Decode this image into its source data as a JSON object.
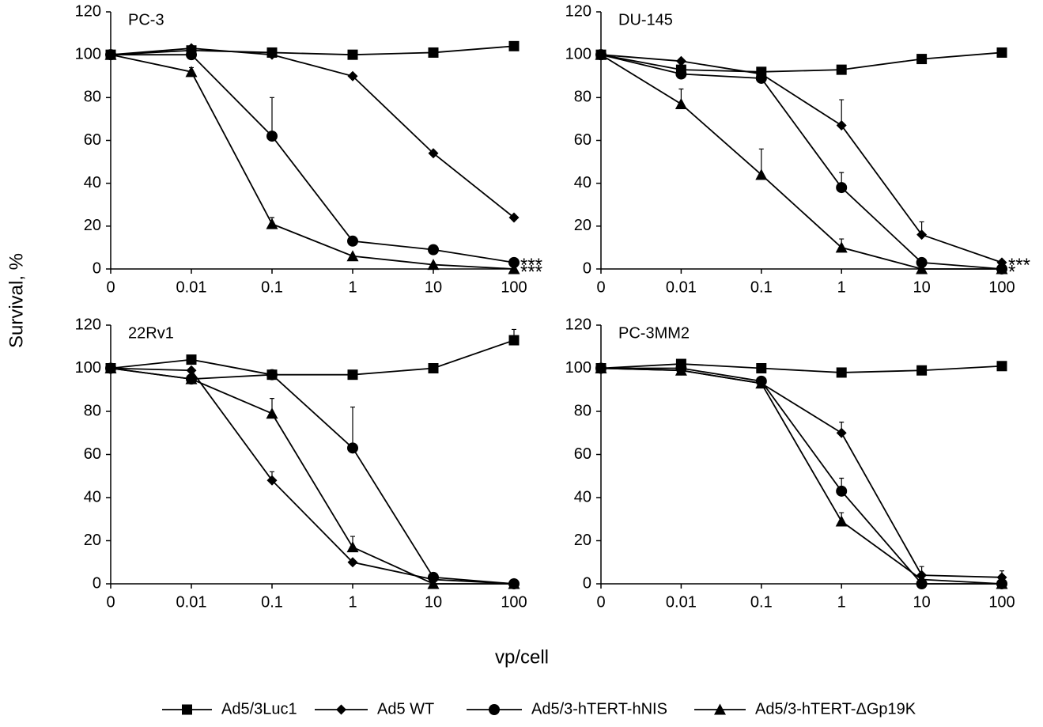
{
  "y_label": "Survival, %",
  "x_label": "vp/cell",
  "chart_data": [
    {
      "type": "line",
      "title": "PC-3",
      "categories": [
        "0",
        "0.01",
        "0.1",
        "1",
        "10",
        "100"
      ],
      "ylim": [
        0,
        120
      ],
      "yticks": [
        0,
        20,
        40,
        60,
        80,
        100,
        120
      ],
      "series": [
        {
          "name": "Ad5/3Luc1",
          "color": "#000000",
          "marker": "square",
          "values": [
            100,
            102,
            101,
            100,
            101,
            104
          ],
          "errors": [
            0,
            0,
            0,
            0,
            0,
            0
          ]
        },
        {
          "name": "Ad5 WT",
          "color": "#000000",
          "marker": "diamond",
          "values": [
            100,
            103,
            100,
            90,
            54,
            24
          ],
          "errors": [
            0,
            0,
            0,
            0,
            0,
            0
          ]
        },
        {
          "name": "Ad5/3-hTERT-hNIS",
          "color": "#000000",
          "marker": "circle",
          "values": [
            100,
            100,
            62,
            13,
            9,
            3
          ],
          "errors": [
            0,
            0,
            18,
            0,
            0,
            0
          ]
        },
        {
          "name": "Ad5/3-hTERT-ΔGp19K",
          "color": "#000000",
          "marker": "triangle",
          "values": [
            100,
            92,
            21,
            6,
            2,
            0
          ],
          "errors": [
            0,
            2,
            3,
            0,
            0,
            0
          ]
        }
      ],
      "annotations": [
        {
          "text": "***",
          "series": 2
        },
        {
          "text": "***",
          "series": 3
        }
      ]
    },
    {
      "type": "line",
      "title": "DU-145",
      "categories": [
        "0",
        "0.01",
        "0.1",
        "1",
        "10",
        "100"
      ],
      "ylim": [
        0,
        120
      ],
      "yticks": [
        0,
        20,
        40,
        60,
        80,
        100,
        120
      ],
      "series": [
        {
          "name": "Ad5/3Luc1",
          "color": "#000000",
          "marker": "square",
          "values": [
            100,
            93,
            92,
            93,
            98,
            101
          ],
          "errors": [
            0,
            0,
            0,
            0,
            0,
            0
          ]
        },
        {
          "name": "Ad5 WT",
          "color": "#000000",
          "marker": "diamond",
          "values": [
            100,
            97,
            91,
            67,
            16,
            3
          ],
          "errors": [
            0,
            0,
            0,
            12,
            6,
            0
          ]
        },
        {
          "name": "Ad5/3-hTERT-hNIS",
          "color": "#000000",
          "marker": "circle",
          "values": [
            100,
            91,
            89,
            38,
            3,
            0
          ],
          "errors": [
            0,
            0,
            0,
            7,
            0,
            0
          ]
        },
        {
          "name": "Ad5/3-hTERT-ΔGp19K",
          "color": "#000000",
          "marker": "triangle",
          "values": [
            100,
            77,
            44,
            10,
            0,
            0
          ],
          "errors": [
            0,
            7,
            12,
            4,
            0,
            0
          ]
        }
      ],
      "annotations": [
        {
          "text": "***",
          "series": 1
        },
        {
          "text": "*",
          "series": 3
        }
      ]
    },
    {
      "type": "line",
      "title": "22Rv1",
      "categories": [
        "0",
        "0.01",
        "0.1",
        "1",
        "10",
        "100"
      ],
      "ylim": [
        0,
        120
      ],
      "yticks": [
        0,
        20,
        40,
        60,
        80,
        100,
        120
      ],
      "series": [
        {
          "name": "Ad5/3Luc1",
          "color": "#000000",
          "marker": "square",
          "values": [
            100,
            104,
            97,
            97,
            100,
            113
          ],
          "errors": [
            0,
            0,
            0,
            0,
            0,
            5
          ]
        },
        {
          "name": "Ad5 WT",
          "color": "#000000",
          "marker": "diamond",
          "values": [
            100,
            99,
            48,
            10,
            2,
            0
          ],
          "errors": [
            0,
            0,
            4,
            0,
            0,
            0
          ]
        },
        {
          "name": "Ad5/3-hTERT-hNIS",
          "color": "#000000",
          "marker": "circle",
          "values": [
            100,
            95,
            97,
            63,
            3,
            0
          ],
          "errors": [
            0,
            0,
            0,
            19,
            0,
            0
          ]
        },
        {
          "name": "Ad5/3-hTERT-ΔGp19K",
          "color": "#000000",
          "marker": "triangle",
          "values": [
            100,
            95,
            79,
            17,
            0,
            0
          ],
          "errors": [
            0,
            0,
            7,
            5,
            0,
            0
          ]
        }
      ]
    },
    {
      "type": "line",
      "title": "PC-3MM2",
      "categories": [
        "0",
        "0.01",
        "0.1",
        "1",
        "10",
        "100"
      ],
      "ylim": [
        0,
        120
      ],
      "yticks": [
        0,
        20,
        40,
        60,
        80,
        100,
        120
      ],
      "series": [
        {
          "name": "Ad5/3Luc1",
          "color": "#000000",
          "marker": "square",
          "values": [
            100,
            102,
            100,
            98,
            99,
            101
          ],
          "errors": [
            0,
            0,
            0,
            0,
            0,
            0
          ]
        },
        {
          "name": "Ad5 WT",
          "color": "#000000",
          "marker": "diamond",
          "values": [
            100,
            99,
            93,
            70,
            4,
            3
          ],
          "errors": [
            0,
            0,
            0,
            5,
            4,
            3
          ]
        },
        {
          "name": "Ad5/3-hTERT-hNIS",
          "color": "#000000",
          "marker": "circle",
          "values": [
            100,
            100,
            94,
            43,
            0,
            0
          ],
          "errors": [
            0,
            0,
            0,
            6,
            0,
            0
          ]
        },
        {
          "name": "Ad5/3-hTERT-ΔGp19K",
          "color": "#000000",
          "marker": "triangle",
          "values": [
            100,
            99,
            93,
            29,
            2,
            0
          ],
          "errors": [
            0,
            0,
            0,
            4,
            0,
            0
          ]
        }
      ]
    }
  ]
}
